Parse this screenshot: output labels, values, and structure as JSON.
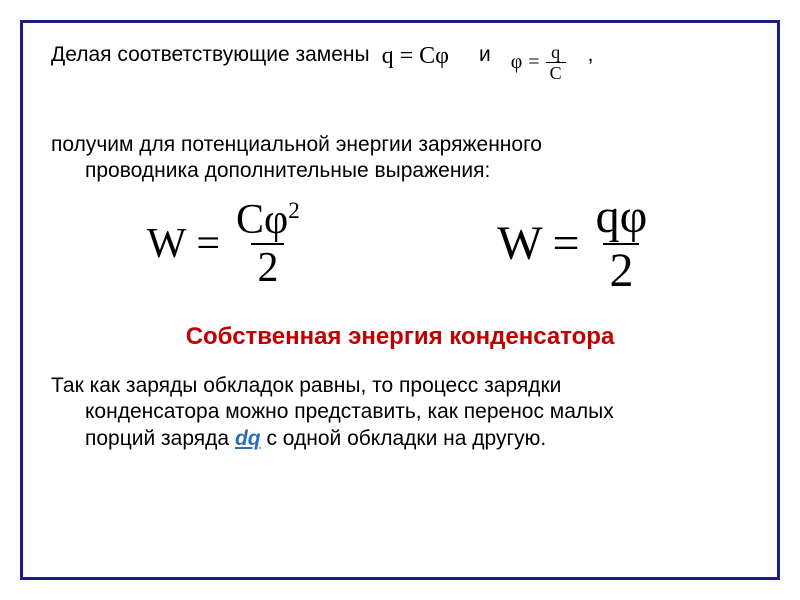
{
  "colors": {
    "frame_border": "#1a1a8a",
    "text": "#000000",
    "heading": "#c00000",
    "dq": "#2a6fb5",
    "background": "#ffffff"
  },
  "fonts": {
    "body_family": "Arial, sans-serif",
    "math_family": "Times New Roman, serif",
    "body_size_pt": 16,
    "heading_size_pt": 18,
    "formula_size_pt": 32
  },
  "row1": {
    "intro": "Делая соответствующие замены",
    "eq1_lhs": "q",
    "eq1_eq": " = ",
    "eq1_rhs": "Cφ",
    "and": "и",
    "eq2_lhs": "φ",
    "eq2_eq": "=",
    "eq2_num": "q",
    "eq2_den": "C",
    "comma": ","
  },
  "para": {
    "line1": "получим для потенциальной энергии заряженного",
    "line2": "проводника дополнительные выражения:"
  },
  "formulas": {
    "f1": {
      "lhs": "W",
      "eq": "=",
      "num_html": "Cφ<sup>2</sup>",
      "den": "2"
    },
    "f2": {
      "lhs": "W",
      "eq": "=",
      "num": "qφ",
      "den": "2"
    }
  },
  "heading": "Собственная энергия конденсатора",
  "para2": {
    "line1": "Так как заряды обкладок равны, то процесс зарядки",
    "line2a": "конденсатора можно представить, как перенос малых",
    "line3a": "порций заряда ",
    "dq": "dq",
    "line3b": " с одной обкладки на другую."
  }
}
